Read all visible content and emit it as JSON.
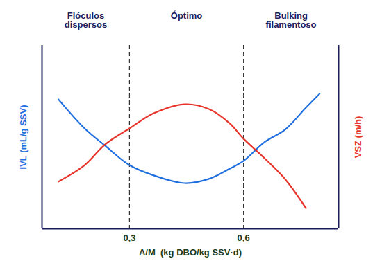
{
  "chart_data": {
    "type": "line",
    "x_label": "A/M  (kg DBO/kg SSV·d)",
    "y_label": "IVL (mL/g SSV)",
    "y2_label": "VSZ (m/h)",
    "annotations": [
      "Flóculos\ndispersos",
      "Óptimo",
      "Bulking\nfilamentoso"
    ],
    "x": [
      0.113,
      0.182,
      0.236,
      0.3,
      0.364,
      0.445,
      0.509,
      0.564,
      0.6,
      0.655,
      0.709,
      0.764,
      0.8
    ],
    "series": [
      {
        "name": "IVL (mL/g SSV)",
        "color": "#1f6fe0",
        "axis": "y",
        "values": [
          70.6,
          54.7,
          45.3,
          34.7,
          29.1,
          24.9,
          27.2,
          32.8,
          37.0,
          47.2,
          54.0,
          66.0,
          73.6
        ]
      },
      {
        "name": "VSZ (m/h)",
        "color": "#e8332a",
        "axis": "y2",
        "values": [
          25.7,
          34.7,
          46.0,
          54.7,
          63.0,
          67.9,
          65.3,
          57.4,
          49.1,
          38.5,
          27.2,
          11.3,
          null
        ]
      }
    ],
    "xlim": [
      0.07,
      0.85
    ],
    "xticks": [
      {
        "value": 0.3,
        "label": "0,3"
      },
      {
        "value": 0.6,
        "label": "0,6"
      }
    ],
    "ylim": [
      0,
      100
    ],
    "yticks": [],
    "y2lim": [
      0,
      100
    ],
    "y2ticks": [],
    "tick_labels": "x",
    "grid": false,
    "line_style": "solid"
  }
}
